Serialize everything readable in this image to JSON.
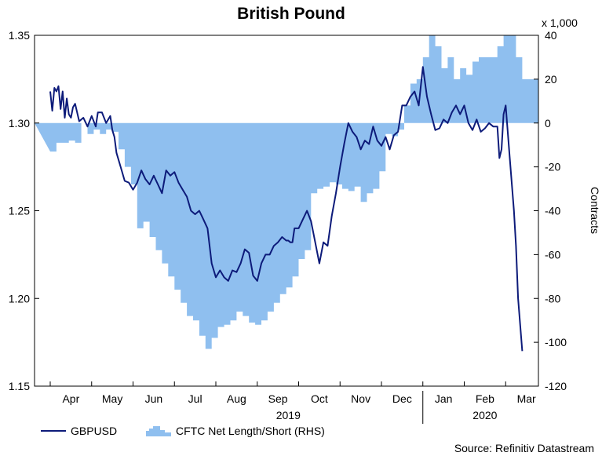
{
  "chart_data": {
    "type": "line",
    "title": "British Pound",
    "source": "Source: Refinitiv Datastream",
    "left_axis": {
      "ylim": [
        1.15,
        1.35
      ],
      "ticks": [
        "1.35",
        "1.30",
        "1.25",
        "1.20",
        "1.15"
      ]
    },
    "right_axis": {
      "ylim": [
        -120,
        40
      ],
      "ticks": [
        "40",
        "20",
        "0",
        "-20",
        "-40",
        "-60",
        "-80",
        "-100",
        "-120"
      ],
      "label": "Contracts",
      "multiplier": "x 1,000"
    },
    "x_axis": {
      "months": [
        "Apr",
        "May",
        "Jun",
        "Jul",
        "Aug",
        "Sep",
        "Oct",
        "Nov",
        "Dec",
        "Jan",
        "Feb",
        "Mar"
      ],
      "years": [
        "2019",
        "2020"
      ]
    },
    "legend": [
      "GBPUSD",
      "CFTC Net Length/Short (RHS)"
    ],
    "series": [
      {
        "name": "CFTC Net Length/Short (RHS)",
        "axis": "right",
        "style": "area",
        "color": "#8fbfef",
        "x": [
          0,
          0.15,
          0.3,
          0.45,
          0.6,
          0.75,
          0.9,
          1.05,
          1.2,
          1.35,
          1.5,
          1.65,
          1.8,
          1.95,
          2.1,
          2.25,
          2.4,
          2.55,
          2.7,
          2.85,
          3.0,
          3.15,
          3.3,
          3.45,
          3.6,
          3.75,
          3.9,
          4.05,
          4.2,
          4.35,
          4.5,
          4.65,
          4.8,
          4.95,
          5.1,
          5.25,
          5.4,
          5.55,
          5.7,
          5.85,
          6.0,
          6.15,
          6.3,
          6.45,
          6.6,
          6.75,
          6.9,
          7.05,
          7.2,
          7.35,
          7.5,
          7.65,
          7.8,
          7.95,
          8.1,
          8.25,
          8.4,
          8.55,
          8.7,
          8.85,
          9.0,
          9.15,
          9.3,
          9.45,
          9.6,
          9.75,
          9.9,
          10.05,
          10.2,
          10.35,
          10.5,
          10.65,
          10.8,
          10.95,
          11.1,
          11.25,
          11.4
        ],
        "values": [
          -13,
          -9,
          -9,
          -8,
          -9,
          0,
          -5,
          -3,
          -5,
          -3,
          -4,
          -12,
          -20,
          -28,
          -48,
          -45,
          -52,
          -58,
          -64,
          -70,
          -76,
          -82,
          -88,
          -90,
          -97,
          -103,
          -98,
          -93,
          -92,
          -90,
          -86,
          -88,
          -91,
          -92,
          -90,
          -86,
          -82,
          -78,
          -75,
          -70,
          -62,
          -58,
          -32,
          -30,
          -29,
          -27,
          -28,
          -30,
          -31,
          -29,
          -36,
          -32,
          -30,
          -22,
          -5,
          -6,
          -3,
          8,
          18,
          20,
          30,
          40,
          35,
          25,
          30,
          20,
          25,
          22,
          28,
          30,
          30,
          30,
          35,
          40,
          40,
          30,
          20
        ]
      },
      {
        "name": "GBPUSD",
        "axis": "left",
        "style": "line",
        "color": "#0d1b7a",
        "x": [
          0,
          0.05,
          0.1,
          0.15,
          0.2,
          0.25,
          0.3,
          0.35,
          0.4,
          0.45,
          0.5,
          0.55,
          0.6,
          0.7,
          0.8,
          0.9,
          1.0,
          1.1,
          1.15,
          1.25,
          1.35,
          1.45,
          1.5,
          1.55,
          1.6,
          1.7,
          1.8,
          1.9,
          2.0,
          2.1,
          2.2,
          2.3,
          2.4,
          2.5,
          2.6,
          2.7,
          2.8,
          2.9,
          3.0,
          3.1,
          3.2,
          3.3,
          3.4,
          3.5,
          3.6,
          3.7,
          3.8,
          3.9,
          4.0,
          4.1,
          4.2,
          4.3,
          4.4,
          4.5,
          4.6,
          4.7,
          4.8,
          4.9,
          5.0,
          5.1,
          5.2,
          5.3,
          5.4,
          5.5,
          5.6,
          5.7,
          5.75,
          5.8,
          5.85,
          5.9,
          6.0,
          6.1,
          6.2,
          6.3,
          6.4,
          6.5,
          6.6,
          6.7,
          6.8,
          6.9,
          7.0,
          7.1,
          7.2,
          7.3,
          7.4,
          7.5,
          7.6,
          7.7,
          7.8,
          7.9,
          8.0,
          8.1,
          8.2,
          8.3,
          8.4,
          8.5,
          8.6,
          8.7,
          8.8,
          8.9,
          9.0,
          9.1,
          9.2,
          9.3,
          9.4,
          9.5,
          9.6,
          9.7,
          9.8,
          9.9,
          10.0,
          10.1,
          10.2,
          10.3,
          10.4,
          10.5,
          10.6,
          10.7,
          10.8,
          10.85,
          10.9,
          10.95,
          11.0,
          11.1,
          11.2,
          11.25,
          11.3,
          11.4
        ],
        "values": [
          1.318,
          1.307,
          1.32,
          1.318,
          1.321,
          1.308,
          1.318,
          1.303,
          1.314,
          1.305,
          1.303,
          1.309,
          1.311,
          1.301,
          1.303,
          1.298,
          1.304,
          1.298,
          1.306,
          1.306,
          1.3,
          1.304,
          1.296,
          1.292,
          1.283,
          1.275,
          1.267,
          1.266,
          1.262,
          1.266,
          1.273,
          1.268,
          1.265,
          1.27,
          1.265,
          1.26,
          1.273,
          1.27,
          1.272,
          1.266,
          1.262,
          1.258,
          1.25,
          1.248,
          1.25,
          1.245,
          1.24,
          1.22,
          1.212,
          1.216,
          1.212,
          1.21,
          1.216,
          1.215,
          1.22,
          1.228,
          1.226,
          1.213,
          1.21,
          1.22,
          1.225,
          1.225,
          1.23,
          1.232,
          1.235,
          1.233,
          1.233,
          1.232,
          1.232,
          1.24,
          1.24,
          1.245,
          1.25,
          1.244,
          1.232,
          1.22,
          1.232,
          1.23,
          1.247,
          1.26,
          1.275,
          1.288,
          1.3,
          1.295,
          1.292,
          1.285,
          1.29,
          1.288,
          1.298,
          1.29,
          1.287,
          1.292,
          1.285,
          1.293,
          1.295,
          1.31,
          1.31,
          1.315,
          1.318,
          1.31,
          1.332,
          1.315,
          1.305,
          1.296,
          1.297,
          1.302,
          1.3,
          1.306,
          1.31,
          1.305,
          1.31,
          1.3,
          1.296,
          1.302,
          1.295,
          1.297,
          1.3,
          1.298,
          1.298,
          1.28,
          1.285,
          1.305,
          1.31,
          1.28,
          1.25,
          1.23,
          1.2,
          1.17
        ]
      }
    ]
  }
}
